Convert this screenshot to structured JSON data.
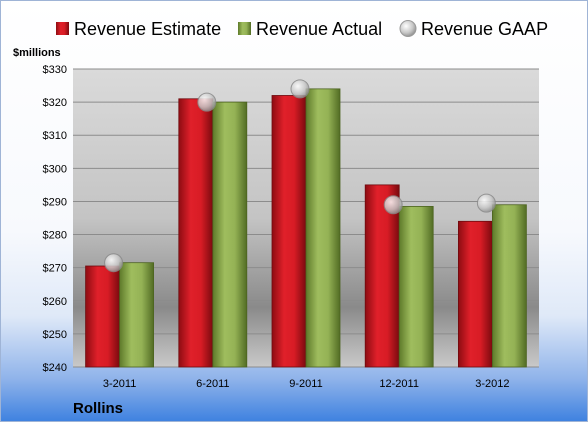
{
  "chart_data": {
    "type": "bar",
    "categories": [
      "3-2011",
      "6-2011",
      "9-2011",
      "12-2011",
      "3-2012"
    ],
    "series": [
      {
        "name": "Revenue Estimate",
        "type": "bar",
        "color": "#c8141e",
        "values": [
          270.5,
          321,
          322,
          295,
          284
        ]
      },
      {
        "name": "Revenue Actual",
        "type": "bar",
        "color": "#8fad50",
        "values": [
          271.5,
          320,
          324,
          288.5,
          289
        ]
      },
      {
        "name": "Revenue GAAP",
        "type": "marker",
        "color": "#bfbfbf",
        "values": [
          271.5,
          320,
          324,
          289,
          289.5
        ]
      }
    ],
    "ylabel": "$millions",
    "ylim": [
      240,
      330
    ],
    "yticks": [
      "$240",
      "$250",
      "$260",
      "$270",
      "$280",
      "$290",
      "$300",
      "$310",
      "$320",
      "$330"
    ],
    "ytick_values": [
      240,
      250,
      260,
      270,
      280,
      290,
      300,
      310,
      320,
      330
    ],
    "grid": true,
    "legend_position": "top",
    "company": "Rollins"
  }
}
